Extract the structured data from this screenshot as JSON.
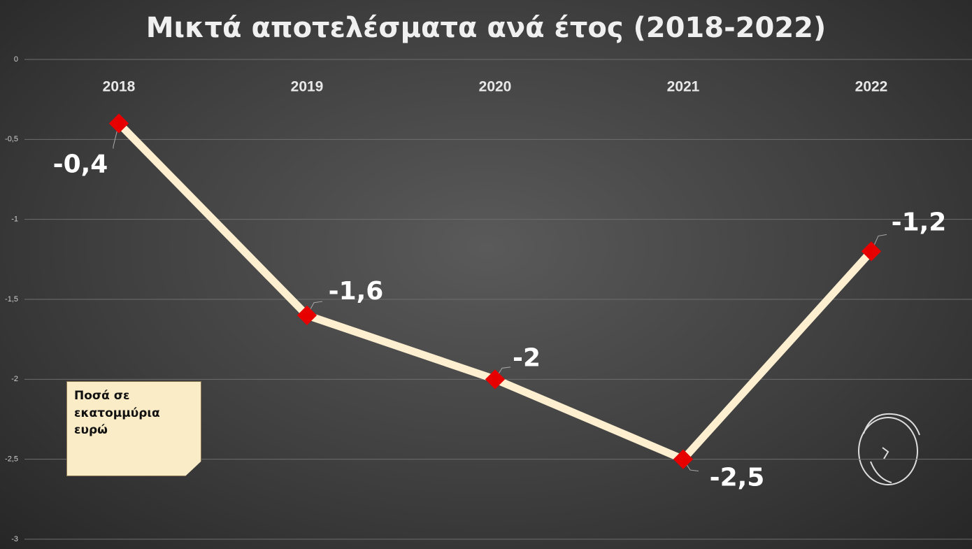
{
  "chart_data": {
    "type": "line",
    "title": "Μικτά αποτελέσματα ανά έτος (2018-2022)",
    "annotation": "Ποσά σε εκατομμύρια ευρώ",
    "categories": [
      "2018",
      "2019",
      "2020",
      "2021",
      "2022"
    ],
    "values": [
      -0.4,
      -1.6,
      -2,
      -2.5,
      -1.2
    ],
    "value_labels": [
      "-0,4",
      "-1,6",
      "-2",
      "-2,5",
      "-1,2"
    ],
    "color": "#fdefd0",
    "marker_color": "#e60000",
    "ylim": [
      0,
      -3
    ],
    "yticks": [
      0,
      {
        "value": -0.5,
        "label": "-0,5"
      },
      -1,
      {
        "value": -1.5,
        "label": "-1,5"
      },
      -2,
      {
        "value": -2.5,
        "label": "-2,5"
      },
      -3
    ],
    "grid": true
  }
}
